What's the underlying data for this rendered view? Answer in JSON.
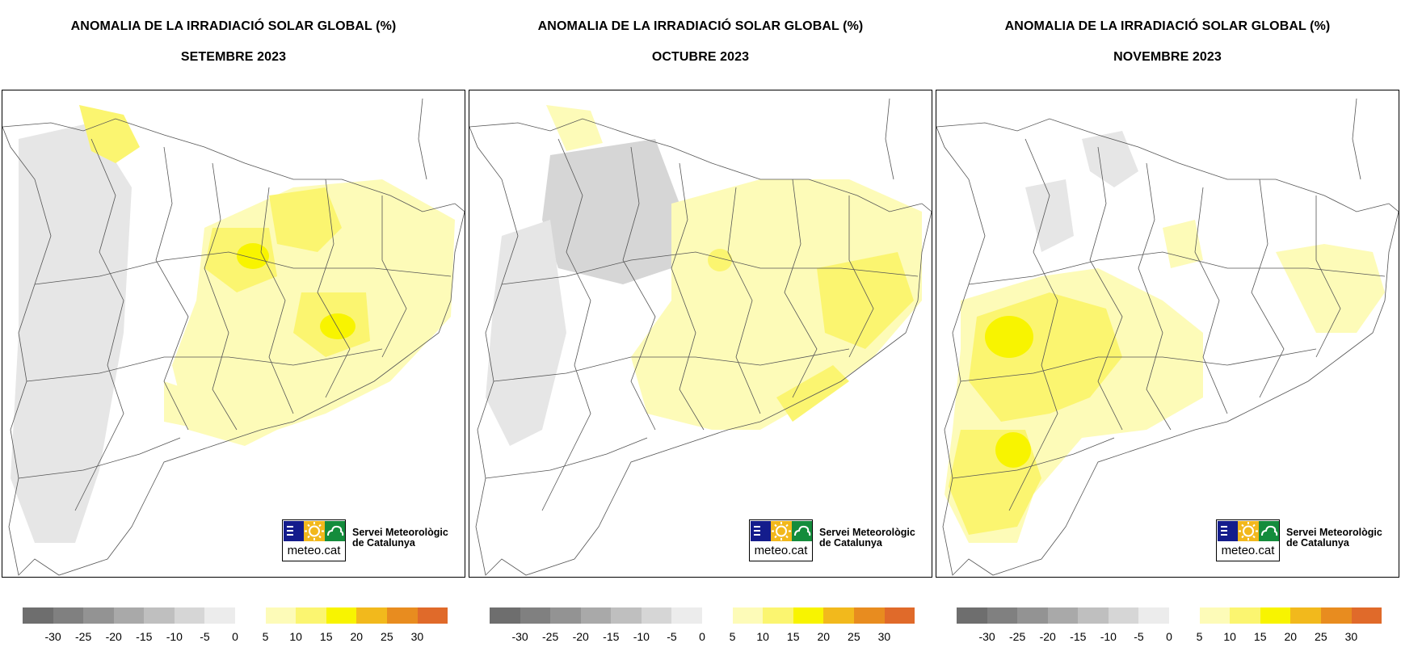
{
  "panels": [
    {
      "title": "ANOMALIA DE LA IRRADIACIÓ SOLAR GLOBAL (%)",
      "period": "SETEMBRE 2023",
      "logo_text": "meteo.cat",
      "org_line1": "Servei Meteorològic",
      "org_line2": "de Catalunya",
      "anomaly_pattern": "positive (yellow) anomalies in central and northeastern Catalonia; slight negative (gray) in the west"
    },
    {
      "title": "ANOMALIA DE LA IRRADIACIÓ SOLAR GLOBAL (%)",
      "period": "OCTUBRE 2023",
      "logo_text": "meteo.cat",
      "org_line1": "Servei Meteorològic",
      "org_line2": "de Catalunya",
      "anomaly_pattern": "positive anomalies along the coast and east; negative (gray) in the northwest Pyrenees"
    },
    {
      "title": "ANOMALIA DE LA IRRADIACIÓ SOLAR GLOBAL (%)",
      "period": "NOVEMBRE 2023",
      "logo_text": "meteo.cat",
      "org_line1": "Servei Meteorològic",
      "org_line2": "de Catalunya",
      "anomaly_pattern": "strong positive anomalies in the west and southwest (Lleida, Ebre); mild elsewhere"
    }
  ],
  "legend": {
    "labels": [
      "-30",
      "-25",
      "-20",
      "-15",
      "-10",
      "-5",
      "0",
      "5",
      "10",
      "15",
      "20",
      "25",
      "30"
    ],
    "colors": [
      "#6e6e6e",
      "#808080",
      "#939393",
      "#a9a9a9",
      "#bfbfbf",
      "#d6d6d6",
      "#ececec",
      "#ffffff",
      "#fdfbb8",
      "#fbf570",
      "#f8f400",
      "#f2b91c",
      "#e88c1f",
      "#e06a2a"
    ]
  },
  "colors": {
    "gray_neg": "#d9d9d9",
    "gray_neg_strong": "#c8c8c8",
    "yellow_light": "#fdfbb8",
    "yellow_mid": "#fbf570",
    "yellow_strong": "#f8f400",
    "border": "#555555",
    "logo_blue": "#141c8c",
    "logo_sun": "#f2b81c",
    "logo_green": "#148c3c"
  }
}
